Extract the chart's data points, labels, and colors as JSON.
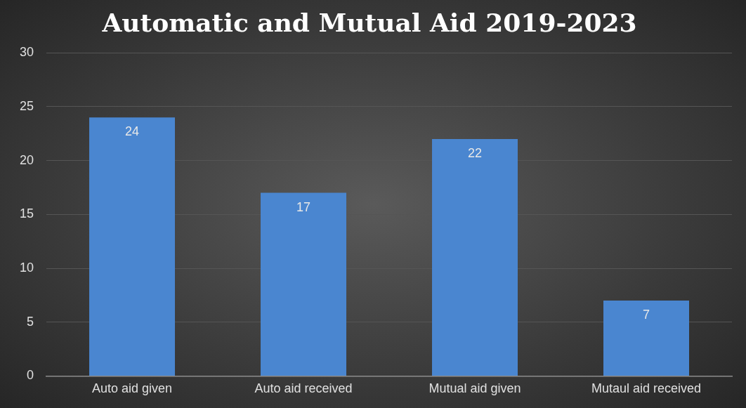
{
  "chart_data": {
    "type": "bar",
    "title": "Automatic and Mutual Aid 2019-2023",
    "categories": [
      "Auto aid given",
      "Auto aid received",
      "Mutual aid given",
      "Mutaul aid received"
    ],
    "values": [
      24,
      17,
      22,
      7
    ],
    "color": "#4a86d0",
    "ylim": [
      0,
      30
    ],
    "yticks": [
      0,
      5,
      10,
      15,
      20,
      25,
      30
    ],
    "grid": "y",
    "data_labels": true
  }
}
